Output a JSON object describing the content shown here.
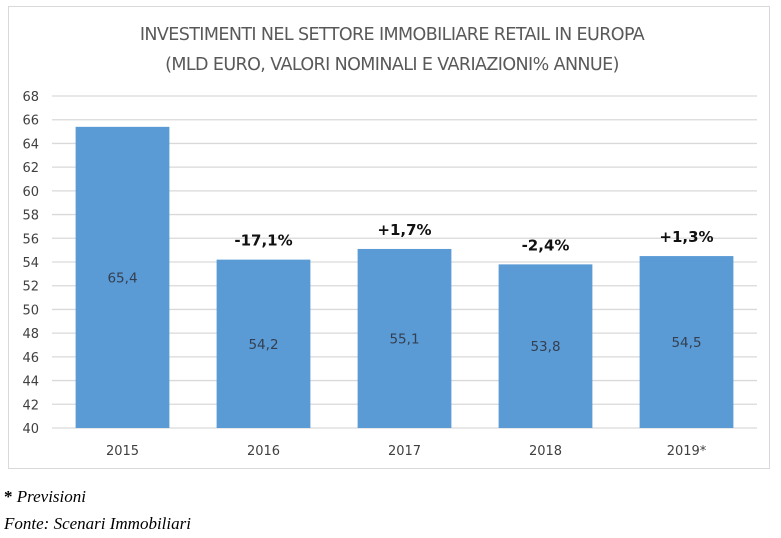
{
  "chart_data": {
    "type": "bar",
    "title": [
      "INVESTIMENTI NEL SETTORE IMMOBILIARE RETAIL IN EUROPA",
      "(MLD EURO, VALORI NOMINALI E VARIAZIONI% ANNUE)"
    ],
    "categories": [
      "2015",
      "2016",
      "2017",
      "2018",
      "2019*"
    ],
    "values": [
      65.4,
      54.2,
      55.1,
      53.8,
      54.5
    ],
    "value_labels": [
      "65,4",
      "54,2",
      "55,1",
      "53,8",
      "54,5"
    ],
    "annotations": [
      "",
      "-17,1%",
      "+1,7%",
      "-2,4%",
      "+1,3%"
    ],
    "xlabel": "",
    "ylabel": "",
    "ylim": [
      40,
      68
    ],
    "yticks": [
      40,
      42,
      44,
      46,
      48,
      50,
      52,
      54,
      56,
      58,
      60,
      62,
      64,
      66,
      68
    ],
    "grid": true,
    "legend": "none",
    "bar_color": "#5b9bd5",
    "grid_color": "#d9d9d9"
  },
  "footnotes": {
    "forecast_marker": "*",
    "forecast_text": " Previsioni",
    "source": "Fonte: Scenari Immobiliari"
  }
}
